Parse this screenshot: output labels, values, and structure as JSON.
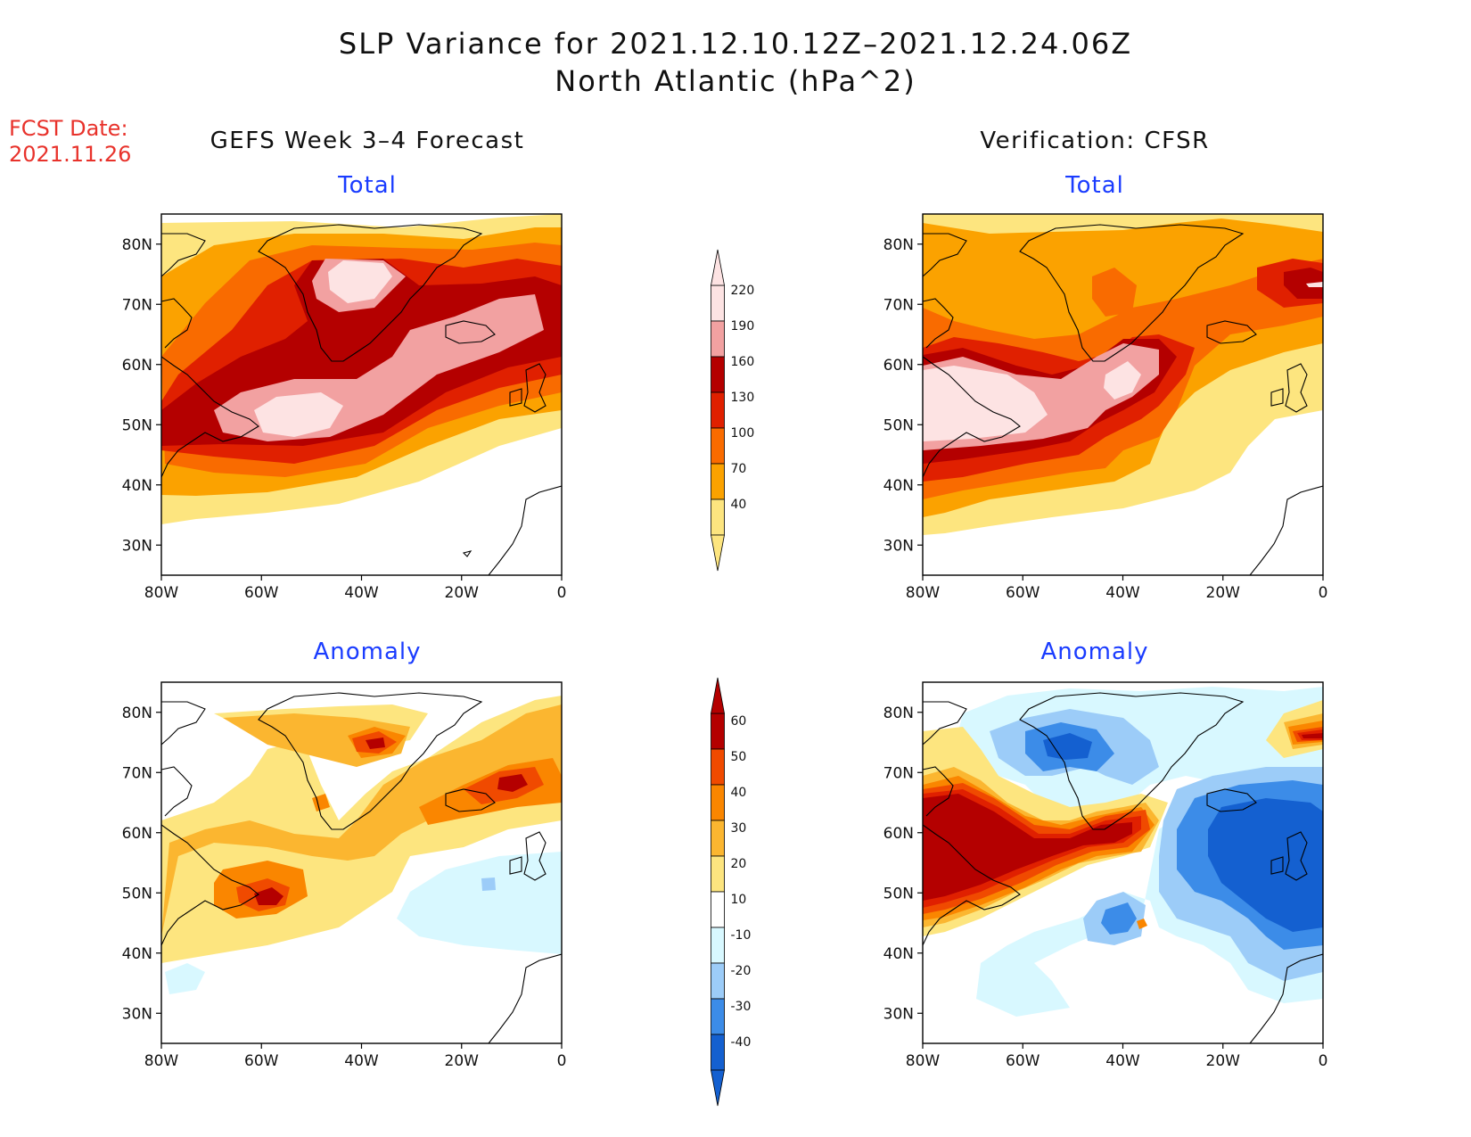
{
  "title": {
    "line1": "SLP Variance for 2021.12.10.12Z–2021.12.24.06Z",
    "line2": "North Atlantic (hPa^2)"
  },
  "fcst": {
    "label": "FCST Date:",
    "date": "2021.11.26"
  },
  "columns": {
    "left": "GEFS Week 3–4 Forecast",
    "right": "Verification: CFSR"
  },
  "panel_titles": {
    "total": "Total",
    "anomaly": "Anomaly"
  },
  "lat_ticks": [
    "80N",
    "70N",
    "60N",
    "50N",
    "40N",
    "30N"
  ],
  "lon_ticks": [
    "80W",
    "60W",
    "40W",
    "20W",
    "0"
  ],
  "map_extent": {
    "lon": [
      -80,
      0
    ],
    "lat": [
      25,
      85
    ]
  },
  "total_scale": {
    "labels": [
      "40",
      "70",
      "100",
      "130",
      "160",
      "190",
      "220"
    ],
    "colors": [
      "#fde57f",
      "#fba200",
      "#f96b00",
      "#e02000",
      "#b40000",
      "#f2a1a1",
      "#fde3e3"
    ]
  },
  "anomaly_scale": {
    "labels": [
      "60",
      "50",
      "40",
      "30",
      "20",
      "10",
      "-10",
      "-20",
      "-30",
      "-40"
    ],
    "colors": [
      "#b40000",
      "#f04a00",
      "#fa8600",
      "#fbb630",
      "#fde57f",
      "#ffffff",
      "#d8f8ff",
      "#9cccf8",
      "#3c8ce8",
      "#1460d0"
    ]
  }
}
